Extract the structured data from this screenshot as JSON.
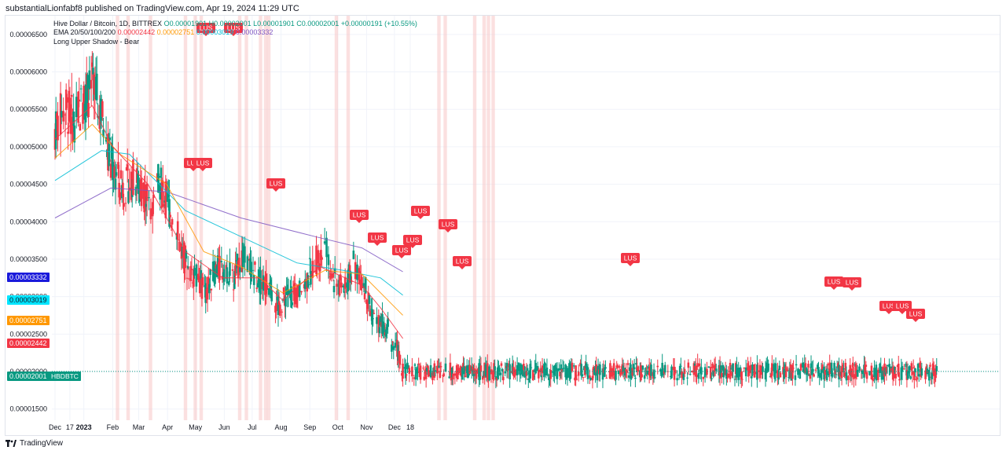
{
  "header": {
    "published": "substantialLionfabf8 published on TradingView.com, Apr 19, 2024 11:29 UTC"
  },
  "legend": {
    "symbol": "Hive Dollar / Bitcoin, 1D, BITTREX",
    "ohlc": "O0.00001901 H0.00002001 L0.00001901 C0.00002001",
    "change": "+0.00000191 (+10.55%)",
    "ema_title": "EMA 20/50/100/200",
    "ema_values": [
      "0.00002442",
      "0.00002751",
      "0.00003019",
      "0.00003332"
    ],
    "pattern": "Long Upper Shadow - Bear"
  },
  "colors": {
    "up": "#089981",
    "down": "#f23645",
    "ema20": "#f23645",
    "ema50": "#ff9800",
    "ema100": "#00bcd4",
    "ema200": "#7e57c2",
    "highlight": "#f8c7c7",
    "label_bg": "#f23645"
  },
  "price_tags": [
    {
      "value": "0.00003332",
      "color": "#1a1adb"
    },
    {
      "value": "0.00003019",
      "color": "#00e5ff"
    },
    {
      "value": "0.00002751",
      "color": "#ff9800"
    },
    {
      "value": "0.00002442",
      "color": "#f23645"
    },
    {
      "value": "0.00002001",
      "color": "#089981"
    }
  ],
  "symbol_tag": "HBDBTC",
  "footer": {
    "brand": "TradingView"
  },
  "chart_data": {
    "type": "candlestick",
    "y_ticks": [
      "0.00006500",
      "0.00006000",
      "0.00005500",
      "0.00005000",
      "0.00004500",
      "0.00004000",
      "0.00003500",
      "0.00003000",
      "0.00002500",
      "0.00002000",
      "0.00001500"
    ],
    "x_ticks": [
      "Dec",
      "17",
      "2023",
      "Feb",
      "Mar",
      "Apr",
      "May",
      "Jun",
      "Jul",
      "Aug",
      "Sep",
      "Oct",
      "Nov",
      "Dec",
      "18"
    ],
    "ylim": [
      1.35e-05,
      6.75e-05
    ],
    "last_price": 2.001e-05,
    "ema_last": {
      "ema20": 2.442e-05,
      "ema50": 2.751e-05,
      "ema100": 3.019e-05,
      "ema200": 3.332e-05
    },
    "pattern_label": "LUS",
    "pattern_days": [
      -5,
      17,
      24,
      30,
      42,
      65,
      86,
      80,
      89,
      100,
      100,
      118,
      121,
      130,
      129,
      150,
      153,
      120,
      190,
      223,
      261,
      262,
      274,
      276,
      279,
      282,
      284,
      286,
      290,
      291
    ],
    "labeled_days": [
      25,
      28,
      38,
      63,
      75,
      79,
      86,
      89,
      74,
      73,
      132,
      196,
      240,
      245,
      268,
      274,
      270,
      276
    ]
  }
}
